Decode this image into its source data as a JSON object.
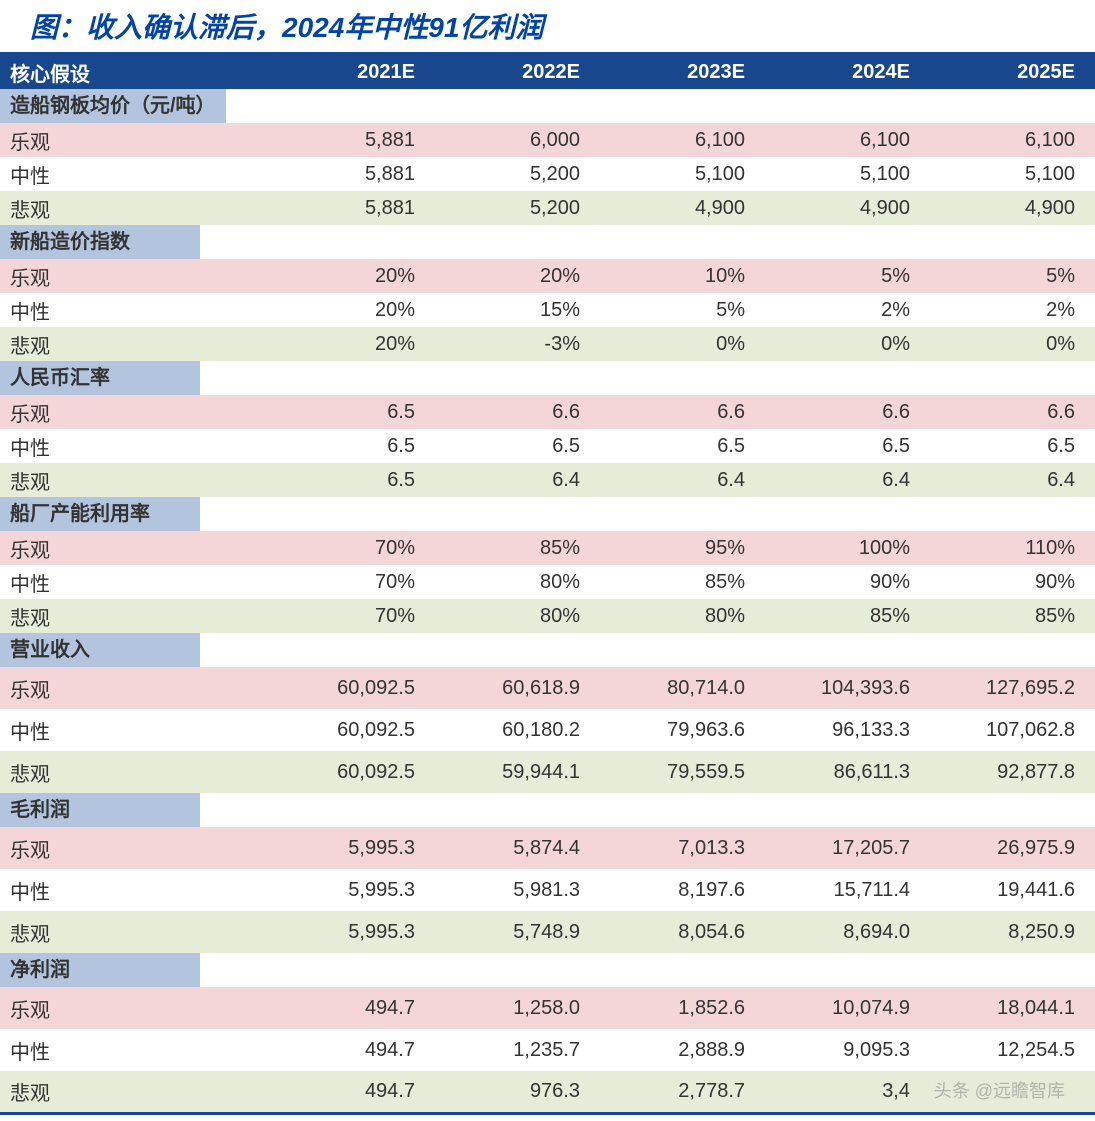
{
  "title": "图：收入确认滞后，2024年中性91亿利润",
  "watermark": "头条 @远瞻智库",
  "colors": {
    "title_text": "#0044aa",
    "title_border": "#19478d",
    "header_bg": "#19478d",
    "header_text": "#ffffff",
    "section_bg": "#b3c5de",
    "row_pink": "#f5d6d8",
    "row_white": "#ffffff",
    "row_green": "#e5ecd7",
    "bottom_border": "#19478d",
    "text": "#333333"
  },
  "columns": [
    "核心假设",
    "2021E",
    "2022E",
    "2023E",
    "2024E",
    "2025E"
  ],
  "col_widths": [
    "270px",
    "165px",
    "165px",
    "165px",
    "165px",
    "165px"
  ],
  "sections": [
    {
      "name": "造船钢板均价（元/吨）",
      "tall": false,
      "rows": [
        {
          "label": "乐观",
          "bg": "row_pink",
          "cells": [
            "5,881",
            "6,000",
            "6,100",
            "6,100",
            "6,100"
          ]
        },
        {
          "label": "中性",
          "bg": "row_white",
          "cells": [
            "5,881",
            "5,200",
            "5,100",
            "5,100",
            "5,100"
          ]
        },
        {
          "label": "悲观",
          "bg": "row_green",
          "cells": [
            "5,881",
            "5,200",
            "4,900",
            "4,900",
            "4,900"
          ]
        }
      ]
    },
    {
      "name": "新船造价指数",
      "tall": false,
      "rows": [
        {
          "label": "乐观",
          "bg": "row_pink",
          "cells": [
            "20%",
            "20%",
            "10%",
            "5%",
            "5%"
          ]
        },
        {
          "label": "中性",
          "bg": "row_white",
          "cells": [
            "20%",
            "15%",
            "5%",
            "2%",
            "2%"
          ]
        },
        {
          "label": "悲观",
          "bg": "row_green",
          "cells": [
            "20%",
            "-3%",
            "0%",
            "0%",
            "0%"
          ]
        }
      ]
    },
    {
      "name": "人民币汇率",
      "tall": false,
      "rows": [
        {
          "label": "乐观",
          "bg": "row_pink",
          "cells": [
            "6.5",
            "6.6",
            "6.6",
            "6.6",
            "6.6"
          ]
        },
        {
          "label": "中性",
          "bg": "row_white",
          "cells": [
            "6.5",
            "6.5",
            "6.5",
            "6.5",
            "6.5"
          ]
        },
        {
          "label": "悲观",
          "bg": "row_green",
          "cells": [
            "6.5",
            "6.4",
            "6.4",
            "6.4",
            "6.4"
          ]
        }
      ]
    },
    {
      "name": "船厂产能利用率",
      "tall": false,
      "rows": [
        {
          "label": "乐观",
          "bg": "row_pink",
          "cells": [
            "70%",
            "85%",
            "95%",
            "100%",
            "110%"
          ]
        },
        {
          "label": "中性",
          "bg": "row_white",
          "cells": [
            "70%",
            "80%",
            "85%",
            "90%",
            "90%"
          ]
        },
        {
          "label": "悲观",
          "bg": "row_green",
          "cells": [
            "70%",
            "80%",
            "80%",
            "85%",
            "85%"
          ]
        }
      ]
    },
    {
      "name": "营业收入",
      "tall": true,
      "rows": [
        {
          "label": "乐观",
          "bg": "row_pink",
          "cells": [
            "60,092.5",
            "60,618.9",
            "80,714.0",
            "104,393.6",
            "127,695.2"
          ]
        },
        {
          "label": "中性",
          "bg": "row_white",
          "cells": [
            "60,092.5",
            "60,180.2",
            "79,963.6",
            "96,133.3",
            "107,062.8"
          ]
        },
        {
          "label": "悲观",
          "bg": "row_green",
          "cells": [
            "60,092.5",
            "59,944.1",
            "79,559.5",
            "86,611.3",
            "92,877.8"
          ]
        }
      ]
    },
    {
      "name": "毛利润",
      "tall": true,
      "rows": [
        {
          "label": "乐观",
          "bg": "row_pink",
          "cells": [
            "5,995.3",
            "5,874.4",
            "7,013.3",
            "17,205.7",
            "26,975.9"
          ]
        },
        {
          "label": "中性",
          "bg": "row_white",
          "cells": [
            "5,995.3",
            "5,981.3",
            "8,197.6",
            "15,711.4",
            "19,441.6"
          ]
        },
        {
          "label": "悲观",
          "bg": "row_green",
          "cells": [
            "5,995.3",
            "5,748.9",
            "8,054.6",
            "8,694.0",
            "8,250.9"
          ]
        }
      ]
    },
    {
      "name": "净利润",
      "tall": true,
      "rows": [
        {
          "label": "乐观",
          "bg": "row_pink",
          "cells": [
            "494.7",
            "1,258.0",
            "1,852.6",
            "10,074.9",
            "18,044.1"
          ]
        },
        {
          "label": "中性",
          "bg": "row_white",
          "cells": [
            "494.7",
            "1,235.7",
            "2,888.9",
            "9,095.3",
            "12,254.5"
          ]
        },
        {
          "label": "悲观",
          "bg": "row_green",
          "cells": [
            "494.7",
            "976.3",
            "2,778.7",
            "3,4",
            ""
          ]
        }
      ]
    }
  ]
}
